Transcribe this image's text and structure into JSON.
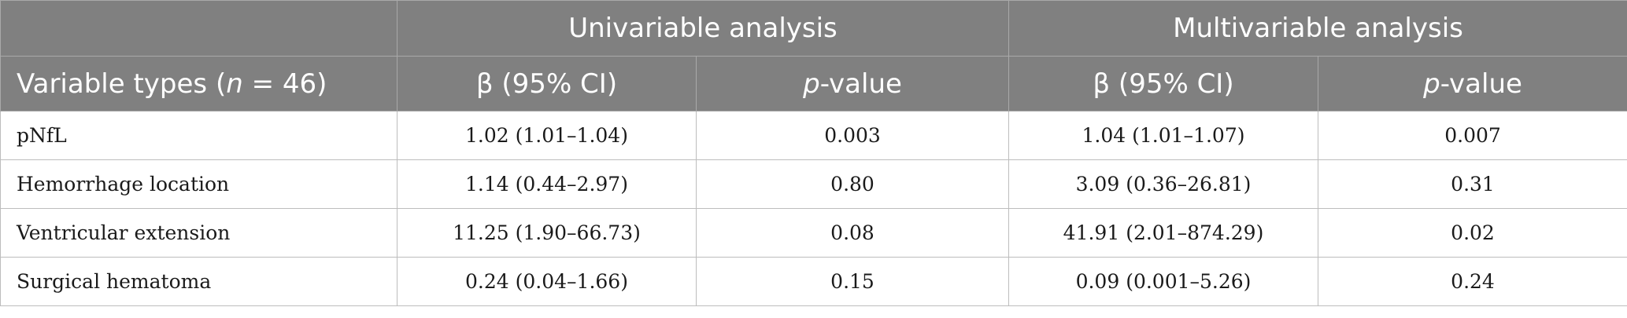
{
  "header": {
    "group_univariable": "Univariable analysis",
    "group_multivariable": "Multivariable analysis",
    "variable_prefix": "Variable types (",
    "variable_n": "n",
    "variable_suffix": " = 46)",
    "beta_label": "β (95% CI)",
    "p_italic": "p",
    "p_suffix": "-value"
  },
  "rows": [
    {
      "variable": "pNfL",
      "uni_beta": "1.02 (1.01–1.04)",
      "uni_p": "0.003",
      "multi_beta": "1.04 (1.01–1.07)",
      "multi_p": "0.007"
    },
    {
      "variable": "Hemorrhage location",
      "uni_beta": "1.14 (0.44–2.97)",
      "uni_p": "0.80",
      "multi_beta": "3.09 (0.36–26.81)",
      "multi_p": "0.31"
    },
    {
      "variable": "Ventricular extension",
      "uni_beta": "11.25 (1.90–66.73)",
      "uni_p": "0.08",
      "multi_beta": "41.91 (2.01–874.29)",
      "multi_p": "0.02"
    },
    {
      "variable": "Surgical hematoma",
      "uni_beta": "0.24 (0.04–1.66)",
      "uni_p": "0.15",
      "multi_beta": "0.09 (0.001–5.26)",
      "multi_p": "0.24"
    }
  ],
  "colors": {
    "header_bg": "#808080",
    "header_text": "#ffffff",
    "grid_line": "#bdbdbd"
  }
}
